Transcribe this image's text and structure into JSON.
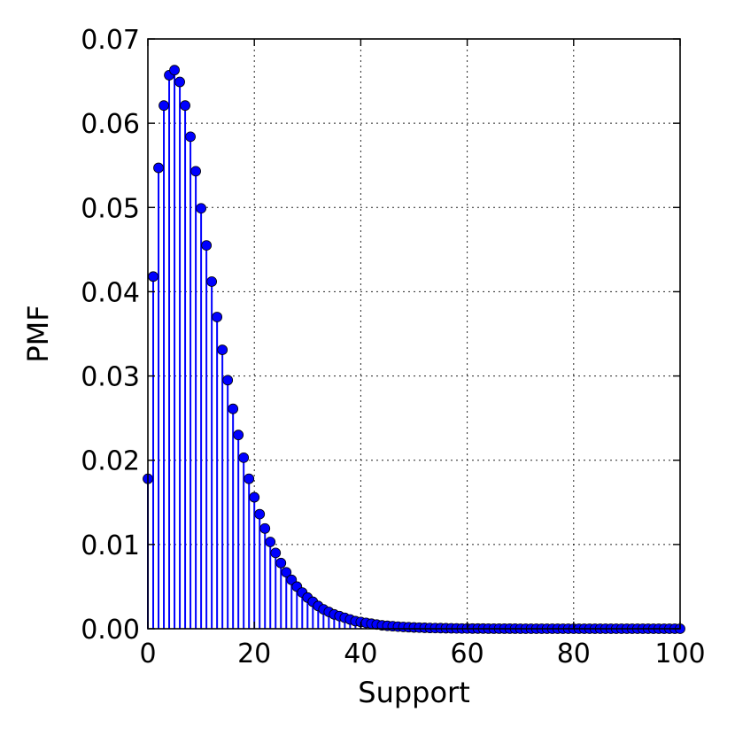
{
  "chart_data": {
    "type": "stem",
    "title": "",
    "xlabel": "Support",
    "ylabel": "PMF",
    "xlim": [
      0,
      100
    ],
    "ylim": [
      0,
      0.07
    ],
    "xticks": [
      0,
      20,
      40,
      60,
      80,
      100
    ],
    "xtick_labels": [
      "0",
      "20",
      "40",
      "60",
      "80",
      "100"
    ],
    "yticks": [
      0,
      0.01,
      0.02,
      0.03,
      0.04,
      0.05,
      0.06,
      0.07
    ],
    "ytick_labels": [
      "0.00",
      "0.01",
      "0.02",
      "0.03",
      "0.04",
      "0.05",
      "0.06",
      "0.07"
    ],
    "grid": true,
    "legend": "none",
    "series": [
      {
        "color": "#0000ff",
        "marker": "circle",
        "x": [
          0,
          1,
          2,
          3,
          4,
          5,
          6,
          7,
          8,
          9,
          10,
          11,
          12,
          13,
          14,
          15,
          16,
          17,
          18,
          19,
          20,
          21,
          22,
          23,
          24,
          25,
          26,
          27,
          28,
          29,
          30,
          31,
          32,
          33,
          34,
          35,
          36,
          37,
          38,
          39,
          40,
          41,
          42,
          43,
          44,
          45,
          46,
          47,
          48,
          49,
          50,
          51,
          52,
          53,
          54,
          55,
          56,
          57,
          58,
          59,
          60,
          61,
          62,
          63,
          64,
          65,
          66,
          67,
          68,
          69,
          70,
          71,
          72,
          73,
          74,
          75,
          76,
          77,
          78,
          79,
          80,
          81,
          82,
          83,
          84,
          85,
          86,
          87,
          88,
          89,
          90,
          91,
          92,
          93,
          94,
          95,
          96,
          97,
          98,
          99,
          100
        ],
        "values": [
          0.0178,
          0.0418,
          0.0547,
          0.0621,
          0.0657,
          0.0663,
          0.0649,
          0.0621,
          0.0584,
          0.0543,
          0.0499,
          0.0455,
          0.0412,
          0.037,
          0.0331,
          0.0295,
          0.0261,
          0.023,
          0.0203,
          0.0178,
          0.0156,
          0.0136,
          0.0119,
          0.0103,
          0.009,
          0.0078,
          0.0067,
          0.0058,
          0.005,
          0.0043,
          0.0037,
          0.0032,
          0.0027,
          0.0023,
          0.002,
          0.0017,
          0.0015,
          0.0013,
          0.0011,
          0.0009,
          0.0008,
          0.0007,
          0.0006,
          0.0005,
          0.0004,
          0.00035,
          0.0003,
          0.00025,
          0.00021,
          0.00018,
          0.00015,
          0.00013,
          0.00011,
          9e-05,
          8e-05,
          7e-05,
          6e-05,
          5e-05,
          4e-05,
          3e-05,
          3e-05,
          2e-05,
          2e-05,
          2e-05,
          1e-05,
          1e-05,
          1e-05,
          1e-05,
          1e-05,
          1e-05,
          0,
          0,
          0,
          0,
          0,
          0,
          0,
          0,
          0,
          0,
          0,
          0,
          0,
          0,
          0,
          0,
          0,
          0,
          0,
          0,
          0,
          0,
          0,
          0,
          0,
          0,
          0,
          0,
          0,
          0,
          0
        ]
      }
    ]
  }
}
